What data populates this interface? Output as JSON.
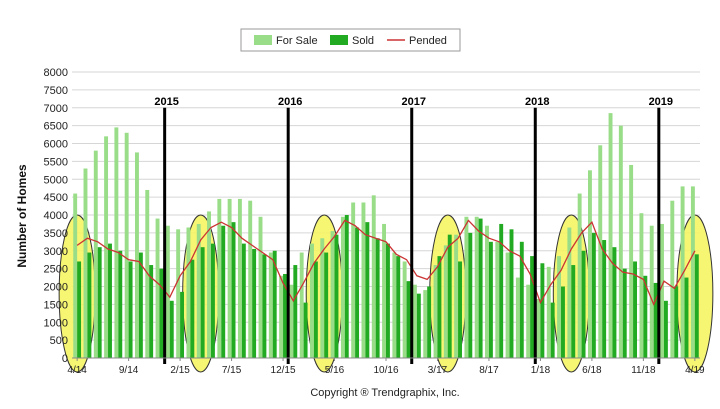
{
  "chart_data": {
    "type": "bar",
    "ylabel": "Number of Homes",
    "ylim": [
      0,
      8000
    ],
    "yticks": [
      0,
      500,
      1000,
      1500,
      2000,
      2500,
      3000,
      3500,
      4000,
      4500,
      5000,
      5500,
      6000,
      6500,
      7000,
      7500,
      8000
    ],
    "grid": true,
    "legend_placement": "top-center",
    "x_tick_labels": [
      {
        "label": "4/14",
        "index": 0
      },
      {
        "label": "9/14",
        "index": 5
      },
      {
        "label": "2/15",
        "index": 10
      },
      {
        "label": "7/15",
        "index": 15
      },
      {
        "label": "12/15",
        "index": 20
      },
      {
        "label": "5/16",
        "index": 25
      },
      {
        "label": "10/16",
        "index": 30
      },
      {
        "label": "3/17",
        "index": 35
      },
      {
        "label": "8/17",
        "index": 40
      },
      {
        "label": "1/18",
        "index": 45
      },
      {
        "label": "6/18",
        "index": 50
      },
      {
        "label": "11/18",
        "index": 55
      },
      {
        "label": "4/19",
        "index": 60
      }
    ],
    "year_markers": [
      {
        "label": "2015",
        "after_index": 8.5
      },
      {
        "label": "2016",
        "after_index": 20.5
      },
      {
        "label": "2017",
        "after_index": 32.5
      },
      {
        "label": "2018",
        "after_index": 44.5
      },
      {
        "label": "2019",
        "after_index": 56.5
      }
    ],
    "highlighted_months": [
      0,
      12,
      24,
      36,
      48,
      60
    ],
    "series": [
      {
        "name": "For Sale",
        "color": "#99dd88",
        "values": [
          4600,
          5300,
          5800,
          6200,
          6450,
          6300,
          5750,
          4700,
          3900,
          3700,
          3600,
          3650,
          3750,
          4100,
          4450,
          4450,
          4450,
          4400,
          3950,
          2950,
          2300,
          2050,
          2950,
          3200,
          3350,
          3550,
          3950,
          4350,
          4350,
          4550,
          3750,
          2950,
          2700,
          2050,
          1900,
          2600,
          3150,
          3450,
          3950,
          3950,
          3700,
          3250,
          2950,
          2250,
          2050,
          1650,
          2550,
          2850,
          3650,
          4600,
          5250,
          5950,
          6850,
          6500,
          5400,
          4050,
          3700,
          3750,
          4400,
          4800,
          4800
        ]
      },
      {
        "name": "Sold",
        "color": "#22aa22",
        "values": [
          2700,
          2950,
          3100,
          3200,
          3000,
          2700,
          2950,
          2600,
          2500,
          1600,
          1850,
          2750,
          3100,
          3200,
          3700,
          3800,
          3200,
          3050,
          2900,
          3000,
          2350,
          2600,
          1550,
          2700,
          2950,
          3450,
          4000,
          3650,
          3800,
          3350,
          3200,
          2850,
          2150,
          1800,
          2000,
          2850,
          3450,
          2700,
          3500,
          3900,
          3250,
          3750,
          3600,
          3250,
          2850,
          2650,
          1550,
          2000,
          2600,
          3000,
          3500,
          3300,
          3100,
          2500,
          2700,
          2300,
          2100,
          1600,
          2000,
          2250,
          2900
        ]
      },
      {
        "name": "Pended",
        "color": "#cc3333",
        "values": [
          3150,
          3350,
          3250,
          3050,
          2950,
          2750,
          2700,
          2300,
          2050,
          1700,
          2300,
          2700,
          3300,
          3650,
          3800,
          3650,
          3350,
          3150,
          2950,
          2750,
          2100,
          1600,
          2100,
          2650,
          3050,
          3400,
          3850,
          3700,
          3450,
          3350,
          3250,
          2900,
          2750,
          2300,
          2200,
          2550,
          3100,
          3350,
          3850,
          3550,
          3350,
          3250,
          3000,
          2850,
          2350,
          1550,
          2050,
          2450,
          3050,
          3500,
          3800,
          3050,
          2650,
          2400,
          2350,
          2200,
          1500,
          2150,
          1950,
          2450,
          3000
        ]
      }
    ]
  },
  "footer": {
    "copyright": "Copyright ® Trendgraphix, Inc."
  }
}
